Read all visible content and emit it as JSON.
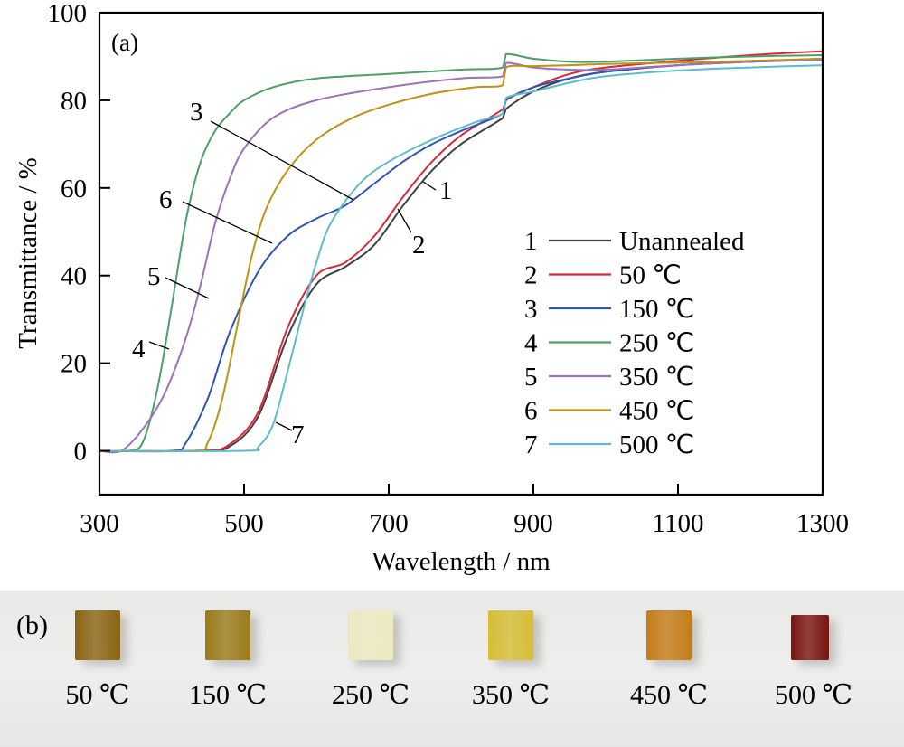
{
  "chart_data": {
    "type": "line",
    "panel_label": "(a)",
    "title": "",
    "xlabel": "Wavelength / nm",
    "ylabel": "Transmittance / %",
    "xlim": [
      300,
      1300
    ],
    "ylim": [
      -10,
      100
    ],
    "xticks": [
      300,
      500,
      700,
      900,
      1100,
      1300
    ],
    "yticks": [
      0,
      20,
      40,
      60,
      80,
      100
    ],
    "grid": false,
    "legend_position": "bottom-right",
    "series": [
      {
        "id": "1",
        "name": "Unannealed",
        "color": "#404040",
        "x": [
          300,
          440,
          480,
          520,
          560,
          600,
          640,
          680,
          720,
          760,
          800,
          858,
          862,
          900,
          950,
          1000,
          1100,
          1200,
          1300
        ],
        "y": [
          0,
          0,
          1,
          8,
          26,
          38,
          42,
          47,
          56,
          64,
          70,
          76,
          78,
          82,
          85,
          86.5,
          88,
          88.8,
          89.5
        ]
      },
      {
        "id": "2",
        "name": "50 ℃",
        "color": "#d62a3a",
        "x": [
          300,
          440,
          480,
          520,
          560,
          600,
          640,
          680,
          720,
          760,
          800,
          858,
          862,
          900,
          950,
          1000,
          1100,
          1200,
          1300
        ],
        "y": [
          0,
          0,
          1.5,
          9,
          28,
          40,
          43,
          49,
          58,
          66,
          72,
          78,
          80,
          83,
          86,
          87.5,
          89,
          90.3,
          91.2
        ]
      },
      {
        "id": "3",
        "name": "150 ℃",
        "color": "#2e55b0",
        "x": [
          300,
          400,
          420,
          450,
          480,
          520,
          560,
          600,
          640,
          680,
          720,
          760,
          800,
          858,
          862,
          900,
          950,
          1000,
          1100,
          1200,
          1300
        ],
        "y": [
          0,
          0,
          2,
          12,
          27,
          41,
          49,
          53,
          56,
          61,
          66,
          70,
          73,
          77,
          80,
          83,
          85,
          86.5,
          88,
          88.8,
          89.2
        ]
      },
      {
        "id": "4",
        "name": "250 ℃",
        "color": "#4e9e6a",
        "x": [
          300,
          340,
          360,
          380,
          400,
          420,
          440,
          460,
          480,
          500,
          540,
          600,
          700,
          800,
          858,
          862,
          900,
          950,
          1000,
          1100,
          1200,
          1300
        ],
        "y": [
          0,
          0,
          2,
          14,
          33,
          53,
          66,
          73,
          77,
          80,
          83,
          85,
          86,
          87,
          87.5,
          90.5,
          89.5,
          88.8,
          88.8,
          89.5,
          90,
          90.3
        ]
      },
      {
        "id": "5",
        "name": "350 ℃",
        "color": "#9b72b8",
        "x": [
          300,
          330,
          360,
          390,
          420,
          440,
          460,
          480,
          500,
          540,
          600,
          700,
          800,
          858,
          862,
          900,
          950,
          1000,
          1100,
          1200,
          1300
        ],
        "y": [
          0,
          0,
          5,
          13,
          26,
          38,
          52,
          62,
          69,
          76,
          80,
          83,
          85,
          85.5,
          88.5,
          87.5,
          87,
          87,
          88,
          88.8,
          89.3
        ]
      },
      {
        "id": "6",
        "name": "450 ℃",
        "color": "#c09114",
        "x": [
          300,
          430,
          450,
          470,
          490,
          510,
          530,
          560,
          600,
          650,
          700,
          760,
          820,
          858,
          862,
          900,
          950,
          1000,
          1100,
          1200,
          1300
        ],
        "y": [
          0,
          0,
          2,
          12,
          28,
          44,
          55,
          64,
          71,
          76,
          79,
          81.5,
          83,
          83.5,
          87.5,
          87.8,
          88,
          88.3,
          88.6,
          89,
          89.5
        ]
      },
      {
        "id": "7",
        "name": "500 ℃",
        "color": "#5dbccb",
        "x": [
          300,
          500,
          520,
          540,
          560,
          580,
          600,
          620,
          660,
          700,
          760,
          820,
          858,
          862,
          900,
          950,
          1000,
          1100,
          1200,
          1300
        ],
        "y": [
          0,
          0,
          1,
          6,
          18,
          31,
          43,
          52,
          61,
          66,
          71,
          75,
          77,
          80.5,
          82,
          84,
          85.5,
          86.8,
          87.5,
          88
        ]
      }
    ],
    "annotations": [
      {
        "text": "1",
        "series": "1"
      },
      {
        "text": "2",
        "series": "2"
      },
      {
        "text": "3",
        "series": "3"
      },
      {
        "text": "4",
        "series": "4"
      },
      {
        "text": "5",
        "series": "5"
      },
      {
        "text": "6",
        "series": "6"
      },
      {
        "text": "7",
        "series": "7"
      }
    ]
  },
  "photo_panel": {
    "label": "(b)",
    "samples": [
      {
        "caption": "50 ℃",
        "color": "#8a6412"
      },
      {
        "caption": "150 ℃",
        "color": "#9b7a1a"
      },
      {
        "caption": "250 ℃",
        "color": "#ede9bf"
      },
      {
        "caption": "350 ℃",
        "color": "#d7bd35"
      },
      {
        "caption": "450 ℃",
        "color": "#c47c18"
      },
      {
        "caption": "500 ℃",
        "color": "#7a1410"
      }
    ]
  }
}
